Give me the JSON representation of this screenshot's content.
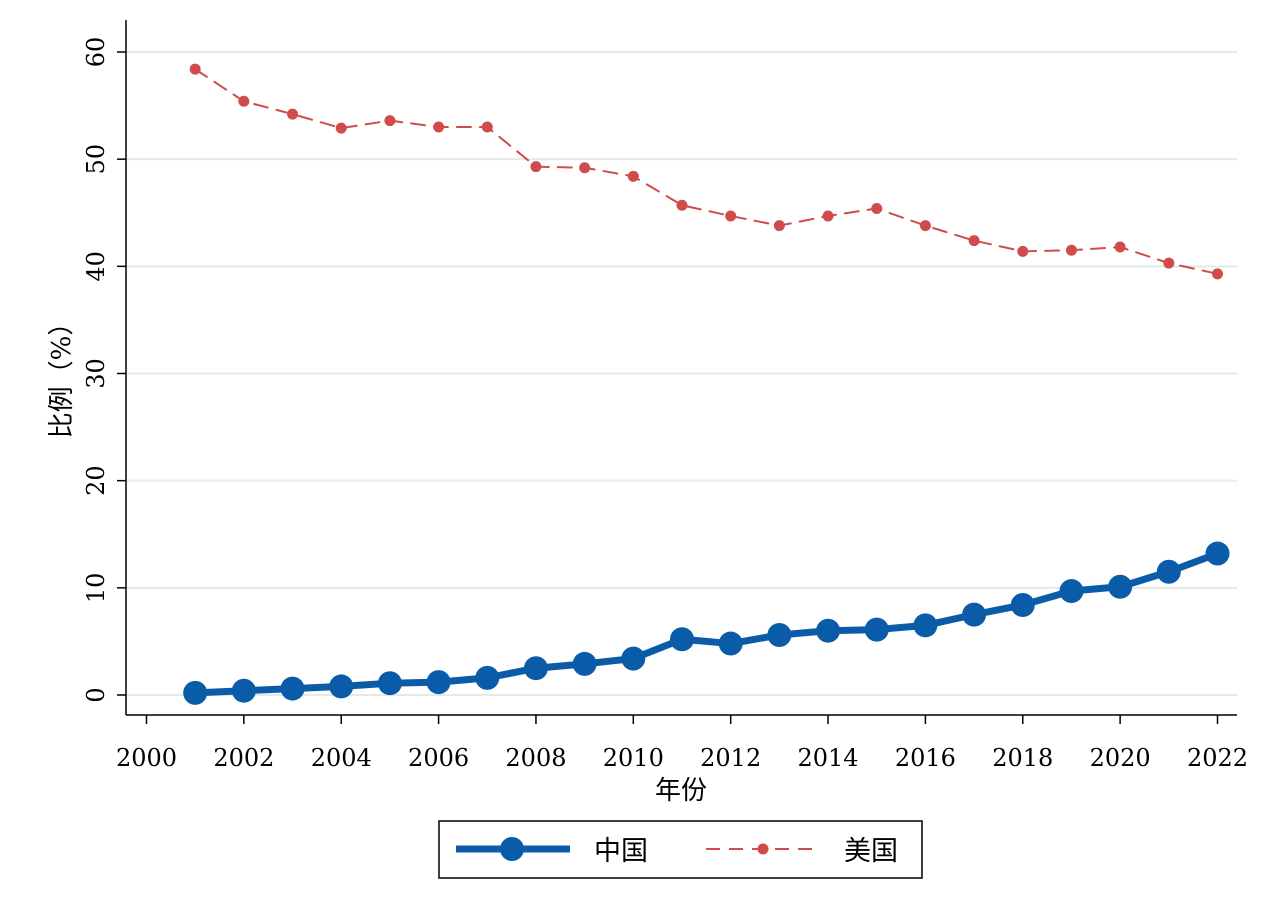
{
  "chart_data": {
    "type": "line",
    "title": "",
    "xlabel": "年份",
    "ylabel": "比例（%）",
    "xlim": [
      2000,
      2022
    ],
    "ylim": [
      0,
      60
    ],
    "x_ticks": [
      2000,
      2002,
      2004,
      2006,
      2008,
      2010,
      2012,
      2014,
      2016,
      2018,
      2020,
      2022
    ],
    "y_ticks": [
      0,
      10,
      20,
      30,
      40,
      50,
      60
    ],
    "grid": "horizontal",
    "legend_position": "bottom",
    "x": [
      2001,
      2002,
      2003,
      2004,
      2005,
      2006,
      2007,
      2008,
      2009,
      2010,
      2011,
      2012,
      2013,
      2014,
      2015,
      2016,
      2017,
      2018,
      2019,
      2020,
      2021,
      2022
    ],
    "series": [
      {
        "name": "中国",
        "color": "#0b5ca8",
        "style": "solid",
        "marker": "large-circle",
        "values": [
          0.2,
          0.4,
          0.6,
          0.8,
          1.1,
          1.2,
          1.6,
          2.5,
          2.9,
          3.4,
          5.2,
          4.8,
          5.6,
          6.0,
          6.1,
          6.5,
          7.5,
          8.4,
          9.7,
          10.1,
          11.5,
          13.2
        ]
      },
      {
        "name": "美国",
        "color": "#d04c4c",
        "style": "dashed",
        "marker": "small-circle",
        "values": [
          58.4,
          55.4,
          54.2,
          52.9,
          53.6,
          53.0,
          53.0,
          49.3,
          49.2,
          48.4,
          45.7,
          44.7,
          43.8,
          44.7,
          45.4,
          43.8,
          42.4,
          41.4,
          41.5,
          41.8,
          40.3,
          39.3
        ]
      }
    ]
  }
}
